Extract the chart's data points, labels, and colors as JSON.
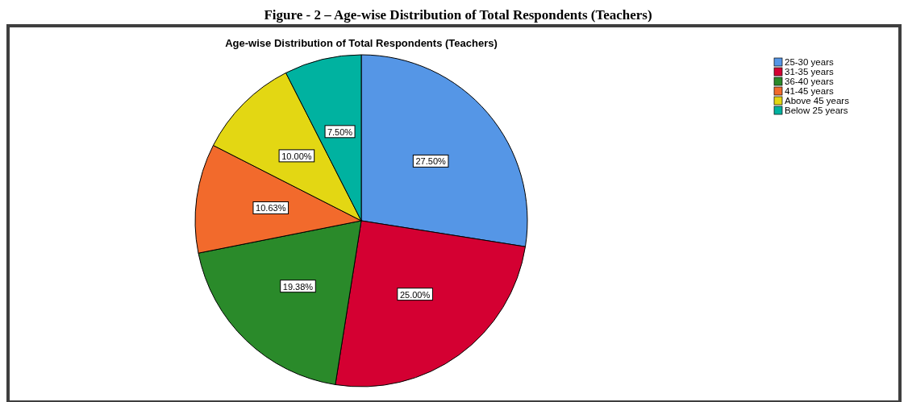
{
  "chart_data": {
    "type": "pie",
    "title": "Age-wise Distribution of Total Respondents (Teachers)",
    "annotations": [
      "Figure - 2 – Age-wise Distribution of Total Respondents (Teachers)"
    ],
    "categories": [
      "25-30 years",
      "31-35 years",
      "36-40 years",
      "41-45 years",
      "Above 45 years",
      "Below 25 years"
    ],
    "values": [
      27.5,
      25,
      19.38,
      10.63,
      10,
      7.5
    ],
    "value_labels": [
      "27.50%",
      "25.00%",
      "19.38%",
      "10.63%",
      "10.00%",
      "7.50%"
    ],
    "colors": [
      "#5596e6",
      "#d40032",
      "#2a8a2a",
      "#f26a2c",
      "#e3d713",
      "#00b2a0"
    ],
    "legend": "top right"
  }
}
